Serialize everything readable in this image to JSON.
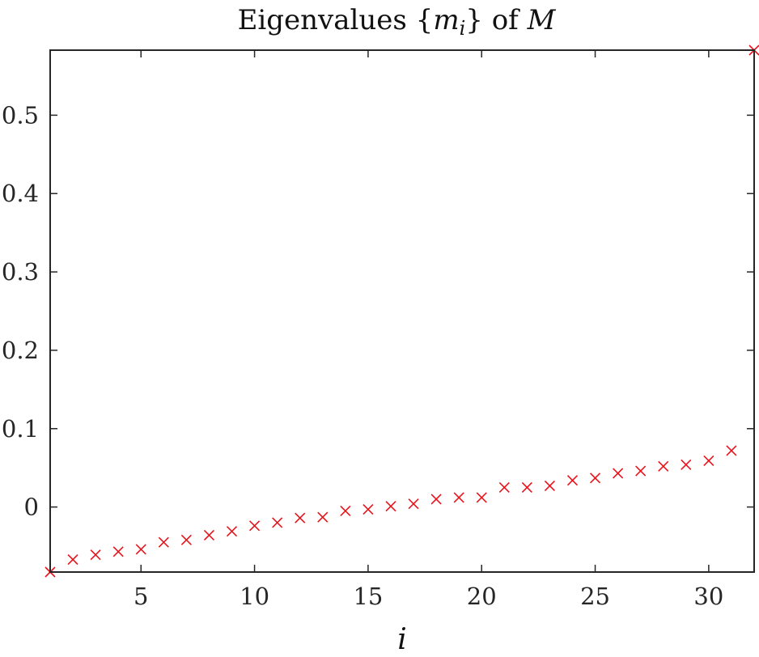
{
  "chart_data": {
    "type": "scatter",
    "title": {
      "prefix": "Eigenvalues {",
      "symbol": "m",
      "subscript": "i",
      "middle": "} of ",
      "matrix": "M"
    },
    "xlabel": "i",
    "ylabel": "",
    "xlim": [
      1,
      32
    ],
    "ylim": [
      -0.083,
      0.583
    ],
    "xticks": [
      5,
      10,
      15,
      20,
      25,
      30
    ],
    "yticks": [
      0,
      0.1,
      0.2,
      0.3,
      0.4,
      0.5
    ],
    "ytick_labels": [
      "0",
      "0.1",
      "0.2",
      "0.3",
      "0.4",
      "0.5"
    ],
    "grid": false,
    "marker": "x",
    "series": [
      {
        "color": "#e8141c",
        "x": [
          1,
          2,
          3,
          4,
          5,
          6,
          7,
          8,
          9,
          10,
          11,
          12,
          13,
          14,
          15,
          16,
          17,
          18,
          19,
          20,
          21,
          22,
          23,
          24,
          25,
          26,
          27,
          28,
          29,
          30,
          31,
          32
        ],
        "y": [
          -0.083,
          -0.067,
          -0.061,
          -0.057,
          -0.054,
          -0.045,
          -0.042,
          -0.036,
          -0.031,
          -0.024,
          -0.02,
          -0.014,
          -0.013,
          -0.005,
          -0.003,
          0.001,
          0.004,
          0.01,
          0.012,
          0.012,
          0.025,
          0.025,
          0.027,
          0.034,
          0.037,
          0.043,
          0.046,
          0.052,
          0.054,
          0.059,
          0.072,
          0.583
        ]
      }
    ]
  }
}
